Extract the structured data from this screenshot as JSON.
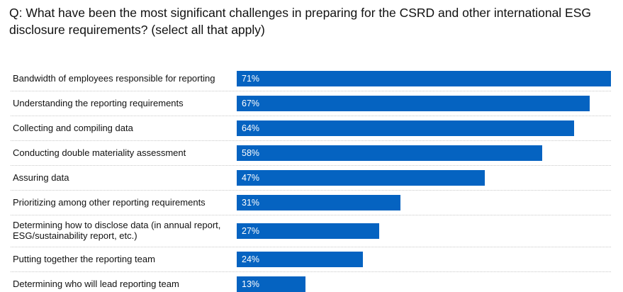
{
  "chart_data": {
    "type": "bar",
    "orientation": "horizontal",
    "title": "Q: What have been the most significant challenges in preparing for the CSRD and other international ESG disclosure requirements? (select all that apply)",
    "categories": [
      "Bandwidth of employees responsible for reporting",
      "Understanding the reporting requirements",
      "Collecting and compiling data",
      "Conducting double materiality assessment",
      "Assuring data",
      "Prioritizing among other reporting requirements",
      "Determining how to disclose data (in annual report, ESG/sustainability report, etc.)",
      "Putting together the reporting team",
      "Determining who will lead reporting team"
    ],
    "values": [
      71,
      67,
      64,
      58,
      47,
      31,
      27,
      24,
      13
    ],
    "data_labels": [
      "71%",
      "67%",
      "64%",
      "58%",
      "47%",
      "31%",
      "27%",
      "24%",
      "13%"
    ],
    "unit": "%",
    "bar_color": "#0563c1",
    "grid": false
  }
}
